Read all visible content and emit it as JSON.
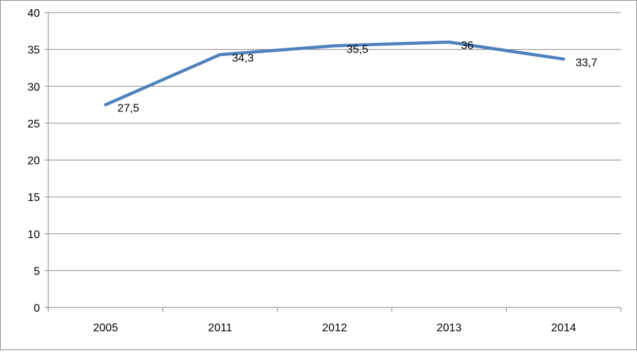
{
  "chart_data": {
    "type": "line",
    "title": "",
    "xlabel": "",
    "ylabel": "",
    "categories": [
      "2005",
      "2011",
      "2012",
      "2013",
      "2014"
    ],
    "series": [
      {
        "values": [
          27.5,
          34.3,
          35.5,
          36,
          33.7
        ],
        "labels": [
          "27,5",
          "34,3",
          "35,5",
          "36",
          "33,7"
        ],
        "color": "#4f81bd"
      }
    ],
    "ylim": [
      0,
      40
    ],
    "yticks": [
      0,
      5,
      10,
      15,
      20,
      25,
      30,
      35,
      40
    ],
    "ytick_labels": [
      "0",
      "5",
      "10",
      "15",
      "20",
      "25",
      "30",
      "35",
      "40"
    ],
    "grid": true,
    "legend": "none",
    "gridline_color": "#868686"
  }
}
